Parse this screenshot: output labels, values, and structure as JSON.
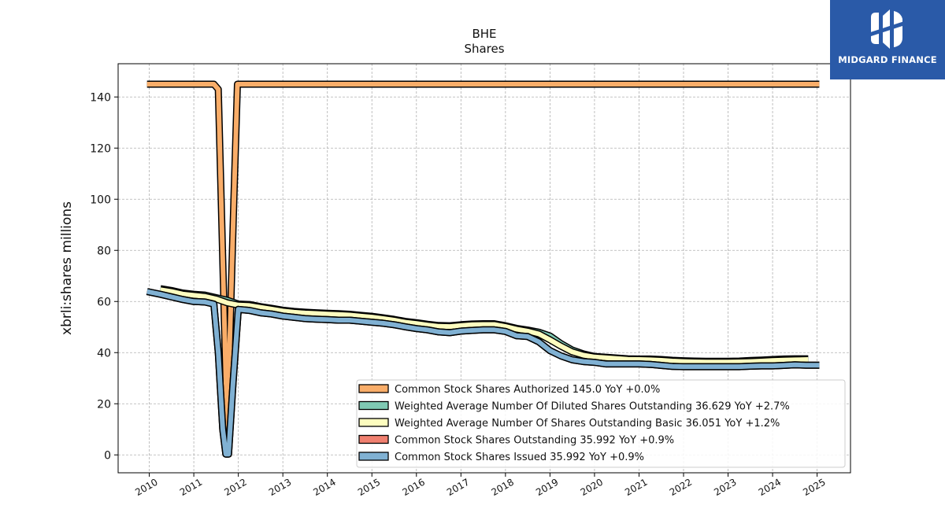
{
  "brand": {
    "name": "MIDGARD FINANCE",
    "icon": "midgard-logo-icon",
    "color": "#2a5aa8"
  },
  "chart_data": {
    "type": "line",
    "title": "BHE",
    "subtitle": "Shares",
    "xlabel": "",
    "ylabel": "xbrli:shares millions",
    "xlim": [
      2009.3,
      2025.75
    ],
    "ylim": [
      -7,
      153
    ],
    "xticks": [
      2010,
      2011,
      2012,
      2013,
      2014,
      2015,
      2016,
      2017,
      2018,
      2019,
      2020,
      2021,
      2022,
      2023,
      2024,
      2025
    ],
    "xtick_labels": [
      "2010",
      "2011",
      "2012",
      "2013",
      "2014",
      "2015",
      "2016",
      "2017",
      "2018",
      "2019",
      "2020",
      "2021",
      "2022",
      "2023",
      "2024",
      "2025"
    ],
    "yticks": [
      0,
      20,
      40,
      60,
      80,
      100,
      120,
      140
    ],
    "ytick_labels": [
      "0",
      "20",
      "40",
      "60",
      "80",
      "100",
      "120",
      "140"
    ],
    "grid": true,
    "legend_position": "lower-right",
    "series": [
      {
        "name": "Common Stock Shares Authorized",
        "legend": "Common Stock Shares Authorized  145.0 YoY +0.0%",
        "color": "#f9ad69",
        "x": [
          2009.95,
          2011.45,
          2011.55,
          2011.75,
          2011.9,
          2011.98,
          2025.05
        ],
        "y": [
          145,
          145,
          143,
          10,
          100,
          145,
          145
        ]
      },
      {
        "name": "Weighted Average Number Of Diluted Shares Outstanding",
        "legend": "Weighted Average Number Of Diluted Shares Outstanding  36.629 YoY +2.7%",
        "color": "#7fc9b3",
        "x": [
          2010.25,
          2010.5,
          2010.75,
          2011.0,
          2011.25,
          2011.5,
          2011.75,
          2012.0,
          2012.25,
          2012.5,
          2012.75,
          2013.0,
          2013.25,
          2013.5,
          2013.75,
          2014.0,
          2014.25,
          2014.5,
          2014.75,
          2015.0,
          2015.25,
          2015.5,
          2015.75,
          2016.0,
          2016.25,
          2016.5,
          2016.75,
          2017.0,
          2017.25,
          2017.5,
          2017.75,
          2018.0,
          2018.25,
          2018.5,
          2018.75,
          2019.0,
          2019.25,
          2019.5,
          2019.75,
          2020.0,
          2020.25,
          2020.5,
          2020.75,
          2021.0,
          2021.25,
          2021.5,
          2021.75,
          2022.0,
          2022.25,
          2022.5,
          2022.75,
          2023.0,
          2023.25,
          2023.5,
          2023.75,
          2024.0,
          2024.25,
          2024.5,
          2024.8
        ],
        "y": [
          65,
          64.3,
          63.3,
          62.8,
          62.5,
          61.5,
          60.5,
          59,
          58.8,
          58,
          57.3,
          56.6,
          56.1,
          55.8,
          55.6,
          55.4,
          55.2,
          55,
          54.6,
          54.2,
          53.6,
          53,
          52.2,
          51.7,
          51.1,
          50.6,
          50.5,
          50.9,
          51.2,
          51.3,
          51.3,
          50.5,
          49.5,
          48.8,
          48,
          46.5,
          43.5,
          41,
          39.5,
          38.5,
          38.2,
          37.9,
          37.6,
          37.5,
          37.5,
          37.3,
          37,
          36.8,
          36.7,
          36.6,
          36.6,
          36.6,
          36.7,
          36.9,
          37.1,
          37.3,
          37.5,
          37.6,
          37.6
        ]
      },
      {
        "name": "Weighted Average Number Of Shares Outstanding Basic",
        "legend": "Weighted Average Number Of Shares Outstanding Basic  36.051 YoY +1.2%",
        "color": "#fdfdbf",
        "x": [
          2010.25,
          2010.5,
          2010.75,
          2011.0,
          2011.25,
          2011.5,
          2011.75,
          2012.0,
          2012.25,
          2012.5,
          2012.75,
          2013.0,
          2013.25,
          2013.5,
          2013.75,
          2014.0,
          2014.25,
          2014.5,
          2014.75,
          2015.0,
          2015.25,
          2015.5,
          2015.75,
          2016.0,
          2016.25,
          2016.5,
          2016.75,
          2017.0,
          2017.25,
          2017.5,
          2017.75,
          2018.0,
          2018.25,
          2018.5,
          2018.75,
          2019.0,
          2019.25,
          2019.5,
          2019.75,
          2020.0,
          2020.25,
          2020.5,
          2020.75,
          2021.0,
          2021.25,
          2021.5,
          2021.75,
          2022.0,
          2022.25,
          2022.5,
          2022.75,
          2023.0,
          2023.25,
          2023.5,
          2023.75,
          2024.0,
          2024.25,
          2024.5,
          2024.8
        ],
        "y": [
          64.6,
          63.9,
          62.9,
          62.4,
          62,
          61,
          59.5,
          58.6,
          58.4,
          57.7,
          57,
          56.3,
          55.8,
          55.5,
          55.3,
          55.1,
          54.9,
          54.7,
          54.3,
          53.9,
          53.3,
          52.7,
          51.9,
          51.4,
          50.8,
          50.3,
          50.2,
          50.6,
          50.9,
          51,
          51,
          50.2,
          49.2,
          48.4,
          47.3,
          45,
          42.5,
          40.3,
          39,
          38.3,
          38,
          37.7,
          37.4,
          37.3,
          37.2,
          37,
          36.7,
          36.5,
          36.4,
          36.3,
          36.3,
          36.3,
          36.4,
          36.5,
          36.7,
          36.9,
          37.1,
          37.2,
          37.3
        ]
      },
      {
        "name": "Common Stock Shares Outstanding",
        "legend": "Common Stock Shares Outstanding  35.992 YoY +0.9%",
        "color": "#f08070",
        "x": [
          2009.95,
          2010.25,
          2010.5,
          2010.75,
          2011.0,
          2011.25,
          2011.45,
          2011.55,
          2011.65,
          2011.72,
          2011.78,
          2011.88,
          2012.0,
          2012.25,
          2012.5,
          2012.75,
          2013.0,
          2013.25,
          2013.5,
          2013.75,
          2014.0,
          2014.25,
          2014.5,
          2014.75,
          2015.0,
          2015.25,
          2015.5,
          2015.75,
          2016.0,
          2016.25,
          2016.5,
          2016.75,
          2017.0,
          2017.25,
          2017.5,
          2017.75,
          2018.0,
          2018.25,
          2018.5,
          2018.75,
          2019.0,
          2019.25,
          2019.5,
          2019.75,
          2020.0,
          2020.25,
          2020.5,
          2020.75,
          2021.0,
          2021.25,
          2021.5,
          2021.75,
          2022.0,
          2022.25,
          2022.5,
          2022.75,
          2023.0,
          2023.25,
          2023.5,
          2023.75,
          2024.0,
          2024.25,
          2024.5,
          2024.75,
          2025.05
        ],
        "y": [
          63.9,
          62.8,
          61.8,
          60.8,
          60,
          59.8,
          59,
          40,
          10,
          0.3,
          0.3,
          28,
          56.9,
          56.5,
          55.6,
          55.1,
          54.3,
          53.8,
          53.3,
          53.1,
          52.9,
          52.7,
          52.7,
          52.3,
          51.9,
          51.5,
          50.9,
          50.1,
          49.4,
          48.9,
          48.1,
          47.8,
          48.4,
          48.7,
          48.9,
          48.9,
          48.3,
          46.6,
          46.3,
          44.2,
          40.8,
          38.7,
          37.2,
          36.5,
          36.2,
          35.6,
          35.6,
          35.6,
          35.6,
          35.4,
          35,
          34.6,
          34.5,
          34.5,
          34.5,
          34.5,
          34.5,
          34.5,
          34.7,
          34.8,
          34.8,
          35,
          35.2,
          35.1,
          35.1
        ]
      },
      {
        "name": "Common Stock Shares Issued",
        "legend": "Common Stock Shares Issued  35.992 YoY +0.9%",
        "color": "#80b1d3",
        "x": [
          2009.95,
          2010.25,
          2010.5,
          2010.75,
          2011.0,
          2011.25,
          2011.45,
          2011.55,
          2011.65,
          2011.72,
          2011.78,
          2011.88,
          2012.0,
          2012.25,
          2012.5,
          2012.75,
          2013.0,
          2013.25,
          2013.5,
          2013.75,
          2014.0,
          2014.25,
          2014.5,
          2014.75,
          2015.0,
          2015.25,
          2015.5,
          2015.75,
          2016.0,
          2016.25,
          2016.5,
          2016.75,
          2017.0,
          2017.25,
          2017.5,
          2017.75,
          2018.0,
          2018.25,
          2018.5,
          2018.75,
          2019.0,
          2019.25,
          2019.5,
          2019.75,
          2020.0,
          2020.25,
          2020.5,
          2020.75,
          2021.0,
          2021.25,
          2021.5,
          2021.75,
          2022.0,
          2022.25,
          2022.5,
          2022.75,
          2023.0,
          2023.25,
          2023.5,
          2023.75,
          2024.0,
          2024.25,
          2024.5,
          2024.75,
          2025.05
        ],
        "y": [
          63.9,
          62.8,
          61.8,
          60.8,
          60,
          59.8,
          59,
          40,
          10,
          0.3,
          0.3,
          28,
          56.9,
          56.5,
          55.6,
          55.1,
          54.3,
          53.8,
          53.3,
          53.1,
          52.9,
          52.7,
          52.7,
          52.3,
          51.9,
          51.5,
          50.9,
          50.1,
          49.4,
          48.9,
          48.1,
          47.8,
          48.4,
          48.7,
          48.9,
          48.9,
          48.3,
          46.6,
          46.3,
          44.2,
          40.8,
          38.7,
          37.2,
          36.5,
          36.2,
          35.6,
          35.6,
          35.6,
          35.6,
          35.4,
          35,
          34.6,
          34.5,
          34.5,
          34.5,
          34.5,
          34.5,
          34.5,
          34.7,
          34.8,
          34.8,
          35,
          35.2,
          35.1,
          35.1
        ]
      }
    ]
  }
}
